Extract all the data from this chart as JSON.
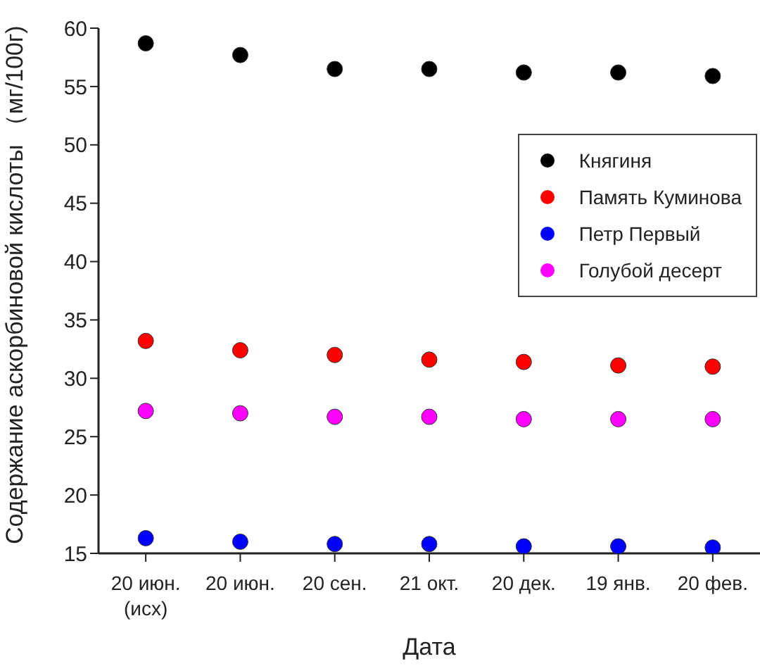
{
  "chart_data": {
    "type": "scatter",
    "xlabel": "Дата",
    "ylabel": "Содержание аскорбиновой кислоты  （мг/100г)",
    "categories": [
      "20 июн.\n(исх)",
      "20 июн.",
      "20 сен.",
      "21 окт.",
      "20 дек.",
      "19 янв.",
      "20 фев."
    ],
    "series": [
      {
        "name": "Княгиня",
        "color": "#000000",
        "values": [
          58.7,
          57.7,
          56.5,
          56.5,
          56.2,
          56.2,
          55.9
        ]
      },
      {
        "name": "Память Куминова",
        "color": "#ff0000",
        "values": [
          33.2,
          32.4,
          32.0,
          31.6,
          31.4,
          31.1,
          31.0
        ]
      },
      {
        "name": "Петр Первый",
        "color": "#0000ff",
        "values": [
          16.3,
          16.0,
          15.8,
          15.8,
          15.6,
          15.6,
          15.5
        ]
      },
      {
        "name": "Голубой десерт",
        "color": "#ff00ff",
        "values": [
          27.2,
          27.0,
          26.7,
          26.7,
          26.5,
          26.5,
          26.5
        ]
      }
    ],
    "ylim": [
      15,
      60
    ],
    "yticks": [
      15,
      20,
      25,
      30,
      35,
      40,
      45,
      50,
      55,
      60
    ],
    "grid": false,
    "legend": "top right",
    "marker": "circle"
  }
}
